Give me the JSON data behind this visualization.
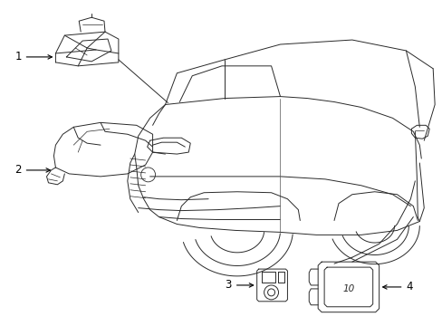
{
  "background_color": "#ffffff",
  "line_color": "#2a2a2a",
  "label_color": "#000000",
  "fig_width": 4.89,
  "fig_height": 3.6,
  "dpi": 100,
  "lw": 0.7,
  "label_fontsize": 8.5
}
